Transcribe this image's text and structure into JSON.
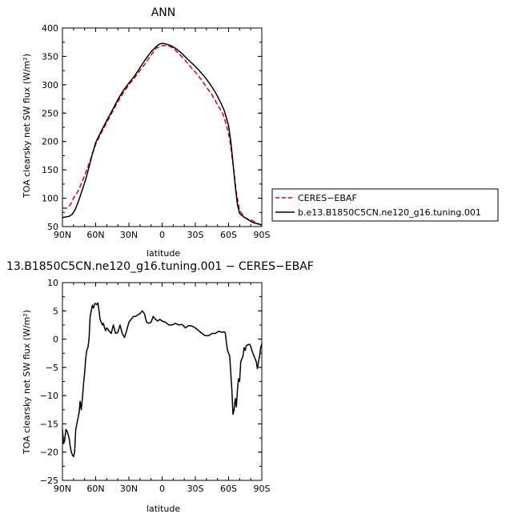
{
  "chart_data": [
    {
      "type": "line",
      "title": "ANN",
      "xlabel": "latitude",
      "ylabel": "TOA clearsky net SW flux (W/m²)",
      "xlim": [
        90,
        -90
      ],
      "ylim": [
        50,
        400
      ],
      "xticks": [
        90,
        60,
        30,
        0,
        -30,
        -60,
        -90
      ],
      "xtick_labels": [
        "90N",
        "60N",
        "30N",
        "0",
        "30S",
        "60S",
        "90S"
      ],
      "yticks": [
        50,
        100,
        150,
        200,
        250,
        300,
        350,
        400
      ],
      "ytick_labels": [
        "50",
        "100",
        "150",
        "200",
        "250",
        "300",
        "350",
        "400"
      ],
      "legend_position": "right",
      "series": [
        {
          "name": "CERES-EBAF",
          "color": "#dd0000",
          "dash": "dashed",
          "x": [
            90,
            87,
            83,
            80,
            76,
            72,
            68,
            64,
            60,
            55,
            50,
            45,
            40,
            35,
            30,
            25,
            20,
            15,
            10,
            5,
            0,
            -5,
            -10,
            -15,
            -20,
            -25,
            -30,
            -35,
            -40,
            -45,
            -50,
            -55,
            -58,
            -61,
            -63,
            -65,
            -67,
            -70,
            -75,
            -80,
            -84,
            -87,
            -90
          ],
          "y": [
            83,
            82,
            88,
            100,
            112,
            130,
            150,
            172,
            195,
            215,
            233,
            252,
            270,
            286,
            300,
            312,
            325,
            338,
            352,
            365,
            369,
            369,
            365,
            355,
            345,
            333,
            322,
            310,
            296,
            282,
            265,
            248,
            230,
            205,
            175,
            145,
            110,
            78,
            65,
            62,
            58,
            55,
            52
          ]
        },
        {
          "name": "b.e13.B1850C5CN.ne120_g16.tuning.001",
          "color": "#000000",
          "dash": "solid",
          "x": [
            90,
            87,
            84,
            81,
            78,
            75,
            72,
            69,
            66,
            63,
            60,
            55,
            50,
            45,
            40,
            35,
            30,
            25,
            20,
            15,
            10,
            5,
            2,
            0,
            -3,
            -8,
            -13,
            -18,
            -23,
            -28,
            -33,
            -38,
            -43,
            -48,
            -53,
            -56,
            -60,
            -62,
            -64,
            -66,
            -68,
            -70,
            -73,
            -77,
            -82,
            -86,
            -90
          ],
          "y": [
            66,
            67,
            68,
            72,
            82,
            98,
            115,
            133,
            155,
            178,
            198,
            218,
            237,
            255,
            274,
            290,
            303,
            315,
            330,
            345,
            358,
            368,
            372,
            373,
            372,
            369,
            363,
            355,
            345,
            336,
            326,
            315,
            302,
            287,
            268,
            255,
            228,
            200,
            163,
            122,
            88,
            73,
            68,
            63,
            57,
            55,
            53
          ]
        }
      ]
    },
    {
      "type": "line",
      "title": "13.B1850C5CN.ne120_g16.tuning.001 − CERES−EBAF",
      "xlabel": "latitude",
      "ylabel": "TOA clearsky net SW flux (W/m²)",
      "xlim": [
        90,
        -90
      ],
      "ylim": [
        -25,
        10
      ],
      "xticks": [
        90,
        60,
        30,
        0,
        -30,
        -60,
        -90
      ],
      "xtick_labels": [
        "90N",
        "60N",
        "30N",
        "0",
        "30S",
        "60S",
        "90S"
      ],
      "yticks": [
        -25,
        -20,
        -15,
        -10,
        -5,
        0,
        5,
        10
      ],
      "ytick_labels": [
        "−25",
        "−20",
        "−15",
        "−10",
        "−5",
        "0",
        "5",
        "10"
      ],
      "series": [
        {
          "name": "",
          "color": "#000000",
          "dash": "solid",
          "x": [
            90,
            89,
            88,
            87,
            86,
            85,
            84,
            83,
            82,
            81,
            80,
            79,
            78,
            77,
            76,
            75,
            74,
            73,
            72,
            71,
            70,
            69,
            68,
            67,
            66,
            65,
            64,
            63,
            62,
            61,
            60,
            59,
            58,
            57,
            56,
            55,
            54,
            53,
            52,
            51,
            50,
            48,
            46,
            44,
            42,
            40,
            38,
            36,
            34,
            32,
            30,
            28,
            26,
            24,
            22,
            20,
            18,
            16,
            14,
            12,
            10,
            8,
            6,
            4,
            2,
            0,
            -3,
            -6,
            -9,
            -12,
            -15,
            -18,
            -21,
            -24,
            -27,
            -30,
            -33,
            -36,
            -39,
            -42,
            -45,
            -48,
            -51,
            -54,
            -56,
            -57,
            -58,
            -59,
            -60,
            -61,
            -62,
            -63,
            -64,
            -65,
            -66,
            -67,
            -68,
            -69,
            -70,
            -71,
            -72,
            -73,
            -74,
            -75,
            -76,
            -77,
            -78,
            -79,
            -80,
            -81,
            -82,
            -83,
            -84,
            -85,
            -86,
            -87,
            -88,
            -89,
            -90
          ],
          "y": [
            -16,
            -18.5,
            -18,
            -16,
            -16.2,
            -16.8,
            -17.5,
            -19,
            -20,
            -20.5,
            -20.8,
            -20,
            -16,
            -15,
            -14,
            -13,
            -11,
            -12.5,
            -10.5,
            -8,
            -6,
            -3.5,
            -2,
            -1.5,
            0,
            4,
            5,
            6,
            5.5,
            6.2,
            6.3,
            6.1,
            6.4,
            5,
            3.5,
            3,
            2.5,
            2.8,
            2,
            1.5,
            2,
            1.5,
            1,
            2.5,
            1,
            1.2,
            2.5,
            1,
            0.3,
            1.5,
            3,
            3.5,
            4,
            4,
            4.3,
            4.5,
            5,
            4.5,
            3,
            2.8,
            3,
            4,
            3.5,
            3.2,
            3.5,
            3.2,
            3,
            2.5,
            2.5,
            2.8,
            2.5,
            2.6,
            2,
            2.4,
            2.3,
            2,
            1.5,
            1,
            0.6,
            0.6,
            1,
            1,
            1.4,
            1.2,
            1.3,
            1.1,
            -0.5,
            -2,
            -2.5,
            -3,
            -6,
            -9,
            -13.3,
            -12.5,
            -10.5,
            -12,
            -9,
            -7,
            -7.5,
            -4,
            -3.5,
            -3,
            -1.5,
            -2,
            -1.2,
            -1,
            -1,
            -0.9,
            -1.3,
            -2,
            -2.5,
            -3,
            -3.5,
            -4,
            -5.2,
            -4,
            -3,
            -1.5,
            -0.8
          ]
        }
      ]
    }
  ],
  "legend": {
    "entries": [
      {
        "label": "CERES−EBAF",
        "color": "#dd0000",
        "dash": "dashed"
      },
      {
        "label": "b.e13.B1850C5CN.ne120_g16.tuning.001",
        "color": "#000000",
        "dash": "solid"
      }
    ]
  }
}
